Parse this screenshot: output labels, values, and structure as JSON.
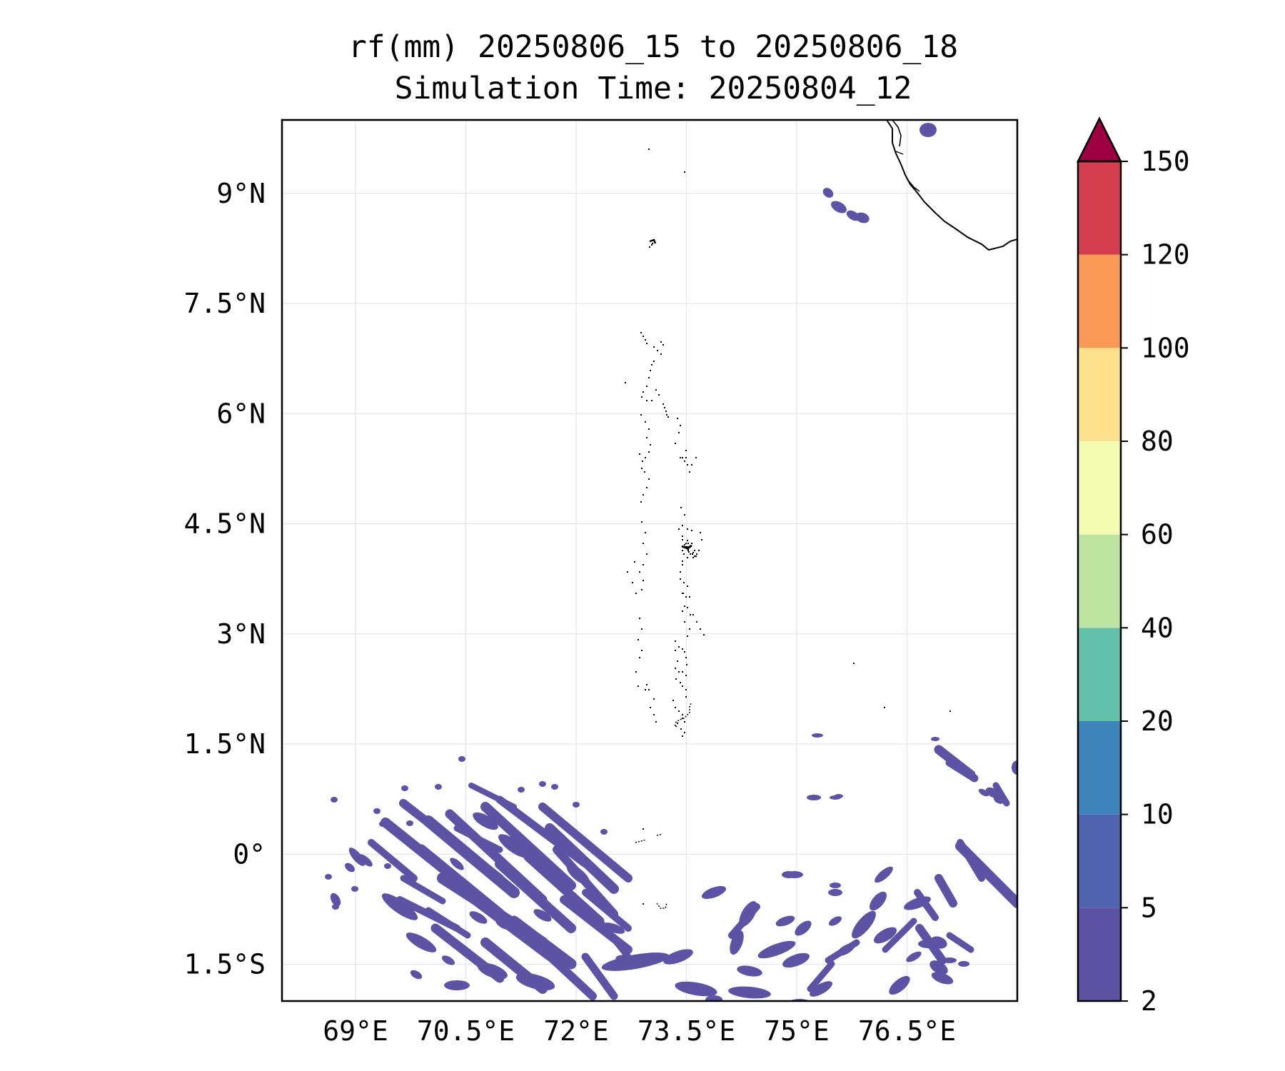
{
  "title": {
    "line1": "rf(mm) 20250806_15 to 20250806_18",
    "line2": "Simulation Time: 20250804_12"
  },
  "map": {
    "lon_range": [
      68.0,
      78.0
    ],
    "lat_range": [
      -2.0,
      10.0
    ],
    "x_ticks": [
      {
        "value": 69.0,
        "label": "69°E"
      },
      {
        "value": 70.5,
        "label": "70.5°E"
      },
      {
        "value": 72.0,
        "label": "72°E"
      },
      {
        "value": 73.5,
        "label": "73.5°E"
      },
      {
        "value": 75.0,
        "label": "75°E"
      },
      {
        "value": 76.5,
        "label": "76.5°E"
      }
    ],
    "y_ticks": [
      {
        "value": 9.0,
        "label": "9°N"
      },
      {
        "value": 7.5,
        "label": "7.5°N"
      },
      {
        "value": 6.0,
        "label": "6°N"
      },
      {
        "value": 4.5,
        "label": "4.5°N"
      },
      {
        "value": 3.0,
        "label": "3°N"
      },
      {
        "value": 1.5,
        "label": "1.5°N"
      },
      {
        "value": 0.0,
        "label": "0°"
      },
      {
        "value": -1.5,
        "label": "1.5°S"
      }
    ],
    "grid": true,
    "rain_color": "#5c53a5"
  },
  "colorbar": {
    "extend": "max",
    "levels": [
      {
        "label": "2",
        "color": "#5c53a5"
      },
      {
        "label": "5",
        "color": "#4e62ad"
      },
      {
        "label": "10",
        "color": "#3c84ba"
      },
      {
        "label": "20",
        "color": "#63c0ab"
      },
      {
        "label": "40",
        "color": "#bde4a0"
      },
      {
        "label": "60",
        "color": "#f2fbb0"
      },
      {
        "label": "80",
        "color": "#fde08b"
      },
      {
        "label": "100",
        "color": "#f99b57"
      },
      {
        "label": "120",
        "color": "#d53e4f"
      },
      {
        "label": "150",
        "color": "#9e0142"
      }
    ]
  }
}
